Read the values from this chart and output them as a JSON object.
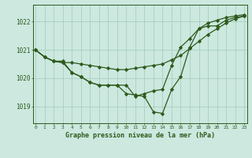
{
  "background_color": "#cce8df",
  "grid_color": "#aacfbf",
  "line_color": "#2d5a1b",
  "title": "Graphe pression niveau de la mer (hPa)",
  "x_ticks": [
    0,
    1,
    2,
    3,
    4,
    5,
    6,
    7,
    8,
    9,
    10,
    11,
    12,
    13,
    14,
    15,
    16,
    17,
    18,
    19,
    20,
    21,
    22,
    23
  ],
  "y_ticks": [
    1019,
    1020,
    1021,
    1022
  ],
  "ylim": [
    1018.4,
    1022.6
  ],
  "xlim": [
    -0.3,
    23.3
  ],
  "series1": [
    1021.0,
    1020.75,
    1020.6,
    1020.6,
    1020.2,
    1020.05,
    1019.85,
    1019.75,
    1019.75,
    1019.75,
    1019.45,
    1019.4,
    1019.35,
    1018.8,
    1018.75,
    1019.6,
    1020.05,
    1021.1,
    1021.75,
    1021.85,
    1021.85,
    1022.05,
    1022.15,
    1022.2
  ],
  "series2": [
    1021.0,
    1020.75,
    1020.6,
    1020.55,
    1020.55,
    1020.5,
    1020.45,
    1020.4,
    1020.35,
    1020.3,
    1020.3,
    1020.35,
    1020.4,
    1020.45,
    1020.5,
    1020.65,
    1020.8,
    1021.05,
    1021.3,
    1021.55,
    1021.75,
    1021.95,
    1022.1,
    1022.2
  ],
  "series3": [
    1021.0,
    1020.75,
    1020.6,
    1020.55,
    1020.2,
    1020.05,
    1019.85,
    1019.75,
    1019.75,
    1019.75,
    1019.75,
    1019.35,
    1019.45,
    1019.55,
    1019.6,
    1020.45,
    1021.1,
    1021.4,
    1021.75,
    1021.95,
    1022.05,
    1022.15,
    1022.2,
    1022.25
  ]
}
